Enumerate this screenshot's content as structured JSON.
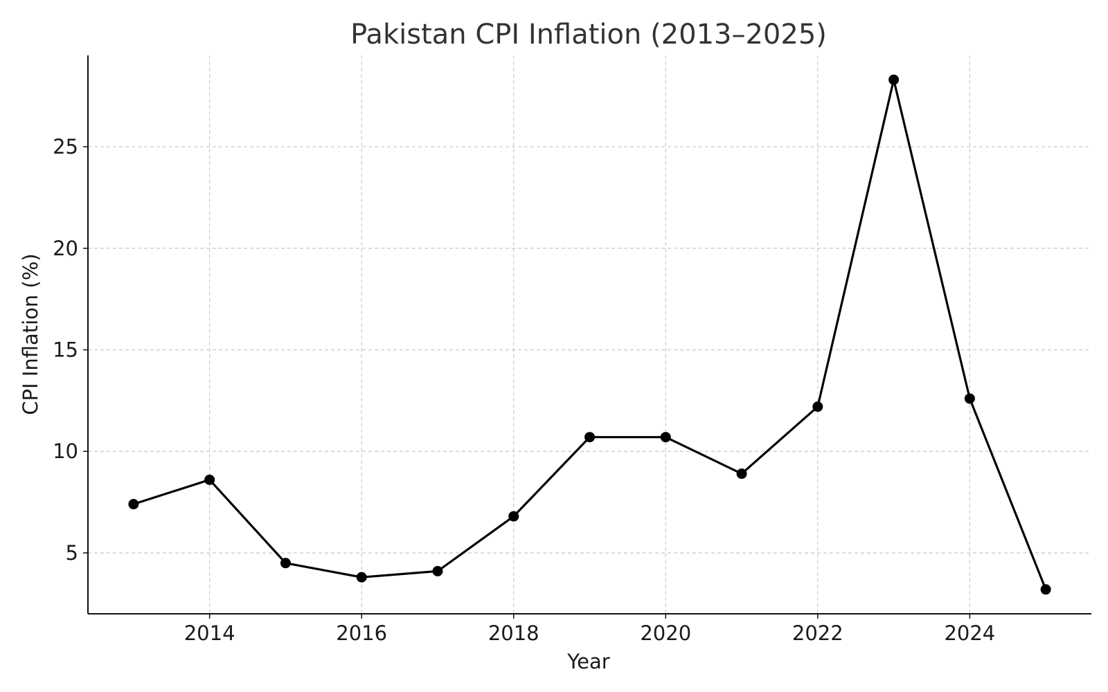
{
  "chart_data": {
    "type": "line",
    "title": "Pakistan CPI Inflation (2013–2025)",
    "xlabel": "Year",
    "ylabel": "CPI Inflation (%)",
    "x": [
      2013,
      2014,
      2015,
      2016,
      2017,
      2018,
      2019,
      2020,
      2021,
      2022,
      2023,
      2024,
      2025
    ],
    "series": [
      {
        "name": "",
        "values": [
          7.4,
          8.6,
          4.5,
          3.8,
          4.1,
          6.8,
          10.7,
          10.7,
          8.9,
          12.2,
          28.3,
          12.6,
          3.2
        ],
        "color": "#000000",
        "marker": "circle"
      }
    ],
    "xlim": [
      2012.4,
      2025.6
    ],
    "ylim": [
      2.0,
      29.5
    ],
    "xticks": [
      2014,
      2016,
      2018,
      2020,
      2022,
      2024
    ],
    "yticks": [
      5,
      10,
      15,
      20,
      25
    ],
    "grid": true,
    "legend": "none"
  }
}
